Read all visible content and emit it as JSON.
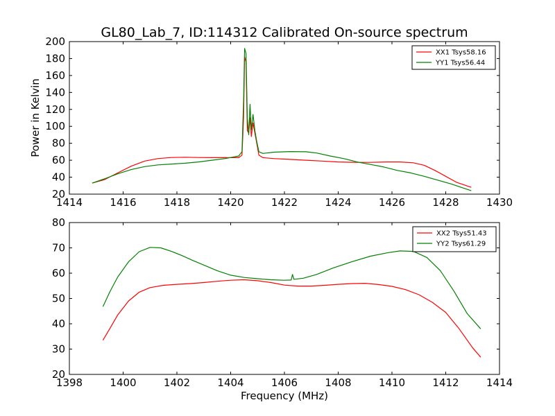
{
  "title": "GL80_Lab_7, ID:114312 Calibrated On-source spectrum",
  "chart_data": [
    {
      "type": "line",
      "ylabel": "Power in Kelvin",
      "xlabel": "",
      "xlim": [
        1414,
        1430
      ],
      "ylim": [
        20,
        200
      ],
      "xticks": [
        1414,
        1416,
        1418,
        1420,
        1422,
        1424,
        1426,
        1428,
        1430
      ],
      "yticks": [
        20,
        40,
        60,
        80,
        100,
        120,
        140,
        160,
        180,
        200
      ],
      "legend": "top-right",
      "series": [
        {
          "name": "XX1 Tsys58.16",
          "color": "#ff0000",
          "points": [
            [
              1414.85,
              33
            ],
            [
              1415.3,
              37
            ],
            [
              1415.8,
              45
            ],
            [
              1416.3,
              53
            ],
            [
              1416.8,
              59
            ],
            [
              1417.3,
              62
            ],
            [
              1417.8,
              63.2
            ],
            [
              1418.3,
              63.5
            ],
            [
              1418.8,
              63.2
            ],
            [
              1419.3,
              63
            ],
            [
              1419.8,
              63
            ],
            [
              1420.3,
              63
            ],
            [
              1420.42,
              66
            ],
            [
              1420.48,
              110
            ],
            [
              1420.52,
              182
            ],
            [
              1420.57,
              176
            ],
            [
              1420.62,
              95
            ],
            [
              1420.67,
              92
            ],
            [
              1420.72,
              110
            ],
            [
              1420.77,
              88
            ],
            [
              1420.83,
              104
            ],
            [
              1420.9,
              92
            ],
            [
              1420.97,
              80
            ],
            [
              1421.05,
              66
            ],
            [
              1421.2,
              63
            ],
            [
              1421.6,
              62
            ],
            [
              1422.2,
              61
            ],
            [
              1422.8,
              60
            ],
            [
              1423.4,
              59
            ],
            [
              1424.0,
              58
            ],
            [
              1424.6,
              57.5
            ],
            [
              1425.2,
              57.5
            ],
            [
              1425.8,
              58
            ],
            [
              1426.3,
              58
            ],
            [
              1426.8,
              57
            ],
            [
              1427.2,
              54
            ],
            [
              1427.6,
              48
            ],
            [
              1428.0,
              41
            ],
            [
              1428.4,
              34
            ],
            [
              1428.95,
              28
            ]
          ]
        },
        {
          "name": "YY1 Tsys56.44",
          "color": "#008000",
          "points": [
            [
              1414.85,
              33
            ],
            [
              1415.3,
              38
            ],
            [
              1415.8,
              44
            ],
            [
              1416.3,
              49
            ],
            [
              1416.8,
              52.5
            ],
            [
              1417.3,
              54.5
            ],
            [
              1417.8,
              55.5
            ],
            [
              1418.3,
              56.5
            ],
            [
              1418.8,
              58
            ],
            [
              1419.3,
              60
            ],
            [
              1419.8,
              62
            ],
            [
              1420.3,
              65
            ],
            [
              1420.42,
              70
            ],
            [
              1420.48,
              130
            ],
            [
              1420.52,
              192
            ],
            [
              1420.57,
              186
            ],
            [
              1420.62,
              110
            ],
            [
              1420.67,
              90
            ],
            [
              1420.72,
              126
            ],
            [
              1420.77,
              96
            ],
            [
              1420.83,
              114
            ],
            [
              1420.9,
              95
            ],
            [
              1420.97,
              82
            ],
            [
              1421.05,
              70
            ],
            [
              1421.2,
              68
            ],
            [
              1421.6,
              69.5
            ],
            [
              1422.2,
              70.2
            ],
            [
              1422.8,
              70
            ],
            [
              1423.2,
              68.5
            ],
            [
              1423.7,
              65
            ],
            [
              1424.2,
              62
            ],
            [
              1424.7,
              58
            ],
            [
              1425.2,
              55
            ],
            [
              1425.7,
              52
            ],
            [
              1426.2,
              48
            ],
            [
              1426.7,
              45
            ],
            [
              1427.2,
              41
            ],
            [
              1427.7,
              36.5
            ],
            [
              1428.2,
              32
            ],
            [
              1428.95,
              24
            ]
          ]
        }
      ]
    },
    {
      "type": "line",
      "ylabel": "",
      "xlabel": "Frequency (MHz)",
      "xlim": [
        1398,
        1414
      ],
      "ylim": [
        20,
        80
      ],
      "xticks": [
        1398,
        1400,
        1402,
        1404,
        1406,
        1408,
        1410,
        1412,
        1414
      ],
      "yticks": [
        20,
        30,
        40,
        50,
        60,
        70,
        80
      ],
      "legend": "top-right",
      "series": [
        {
          "name": "XX2 Tsys51.43",
          "color": "#ff0000",
          "points": [
            [
              1399.25,
              33.5
            ],
            [
              1399.5,
              38
            ],
            [
              1399.8,
              43.5
            ],
            [
              1400.2,
              49
            ],
            [
              1400.6,
              52.5
            ],
            [
              1401.0,
              54.3
            ],
            [
              1401.5,
              55.2
            ],
            [
              1402.0,
              55.6
            ],
            [
              1402.5,
              55.9
            ],
            [
              1403.0,
              56.3
            ],
            [
              1403.5,
              56.8
            ],
            [
              1404.0,
              57.2
            ],
            [
              1404.5,
              57.4
            ],
            [
              1405.0,
              57
            ],
            [
              1405.5,
              56.3
            ],
            [
              1406.0,
              55.3
            ],
            [
              1406.5,
              54.9
            ],
            [
              1407.0,
              54.9
            ],
            [
              1407.5,
              55.2
            ],
            [
              1408.0,
              55.6
            ],
            [
              1408.5,
              55.9
            ],
            [
              1409.0,
              56
            ],
            [
              1409.5,
              55.5
            ],
            [
              1410.0,
              54.8
            ],
            [
              1410.5,
              53.5
            ],
            [
              1411.0,
              51.5
            ],
            [
              1411.5,
              48.5
            ],
            [
              1412.0,
              44.5
            ],
            [
              1412.5,
              38
            ],
            [
              1413.0,
              30.5
            ],
            [
              1413.3,
              26.8
            ]
          ]
        },
        {
          "name": "YY2 Tsys61.29",
          "color": "#008000",
          "points": [
            [
              1399.25,
              46.8
            ],
            [
              1399.5,
              52.5
            ],
            [
              1399.8,
              58.5
            ],
            [
              1400.2,
              64.5
            ],
            [
              1400.6,
              68.5
            ],
            [
              1401.0,
              70.2
            ],
            [
              1401.4,
              70
            ],
            [
              1401.8,
              68.6
            ],
            [
              1402.2,
              66.9
            ],
            [
              1402.6,
              65
            ],
            [
              1403.0,
              63.2
            ],
            [
              1403.5,
              61
            ],
            [
              1404.0,
              59.2
            ],
            [
              1404.5,
              58.3
            ],
            [
              1405.0,
              57.8
            ],
            [
              1405.5,
              57.4
            ],
            [
              1406.0,
              57.2
            ],
            [
              1406.25,
              57.3
            ],
            [
              1406.3,
              59.5
            ],
            [
              1406.35,
              57.6
            ],
            [
              1406.7,
              58
            ],
            [
              1407.2,
              59.5
            ],
            [
              1407.8,
              62
            ],
            [
              1408.5,
              64.5
            ],
            [
              1409.2,
              66.7
            ],
            [
              1409.8,
              68
            ],
            [
              1410.3,
              68.8
            ],
            [
              1410.8,
              68.6
            ],
            [
              1411.3,
              66.2
            ],
            [
              1411.8,
              61
            ],
            [
              1412.3,
              53
            ],
            [
              1412.8,
              44
            ],
            [
              1413.3,
              38
            ]
          ]
        }
      ]
    }
  ]
}
